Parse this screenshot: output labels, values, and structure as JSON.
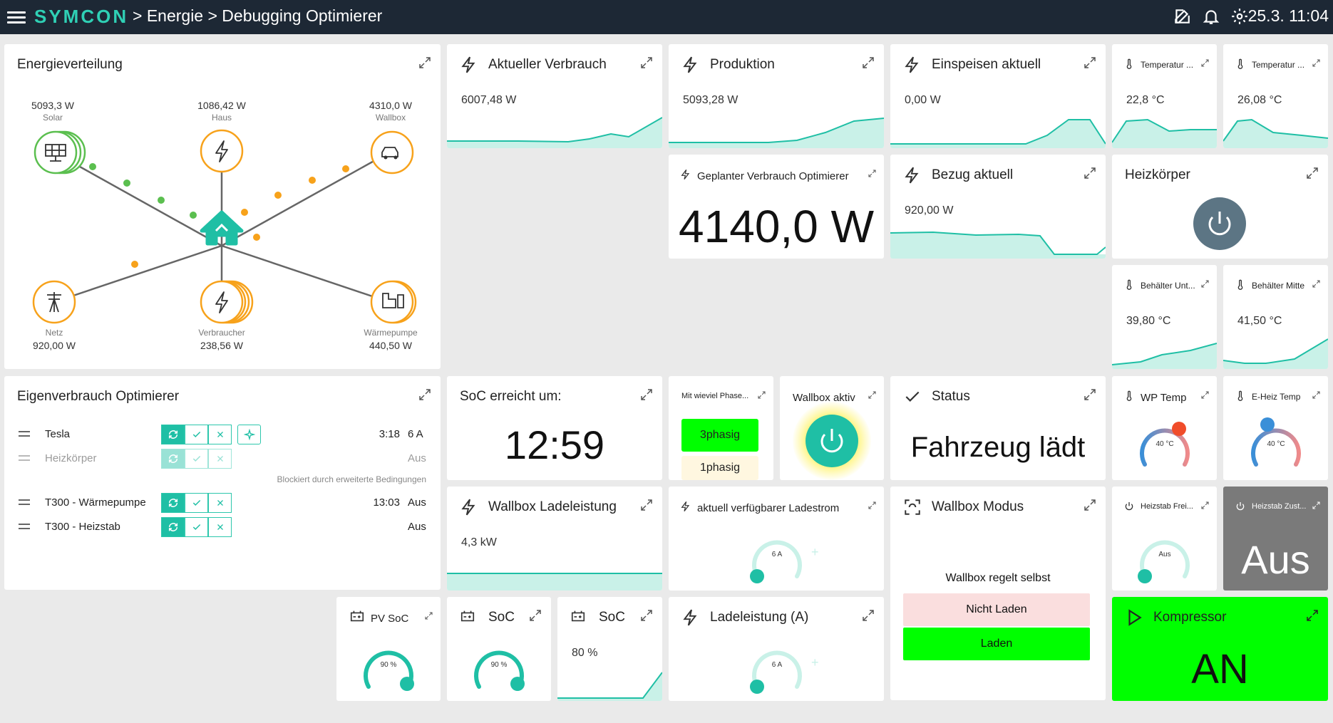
{
  "header": {
    "logo": "SYMCON",
    "breadcrumb": "> Energie > Debugging Optimierer",
    "datetime": "25.3. 11:04"
  },
  "colors": {
    "teal": "#1fbfa5",
    "orange": "#f7a21b",
    "green": "#5bbf4f",
    "bright_green": "#00ff00",
    "dark": "#1d2835"
  },
  "energy": {
    "title": "Energieverteilung",
    "solar": {
      "value": "5093,3 W",
      "label": "Solar"
    },
    "haus": {
      "value": "1086,42 W",
      "label": "Haus"
    },
    "wallbox": {
      "value": "4310,0 W",
      "label": "Wallbox"
    },
    "netz": {
      "value": "920,00 W",
      "label": "Netz"
    },
    "verbraucher": {
      "value": "238,56 W",
      "label": "Verbraucher"
    },
    "waermepumpe": {
      "value": "440,50 W",
      "label": "Wärmepumpe"
    }
  },
  "tiles": {
    "verbrauch": {
      "title": "Aktueller Verbrauch",
      "value": "6007,48 W"
    },
    "produktion": {
      "title": "Produktion",
      "value": "5093,28 W"
    },
    "einspeisen": {
      "title": "Einspeisen aktuell",
      "value": "0,00 W"
    },
    "temp1": {
      "title": "Temperatur ...",
      "value": "22,8 °C"
    },
    "temp2": {
      "title": "Temperatur ...",
      "value": "26,08 °C"
    },
    "geplant": {
      "title": "Geplanter Verbrauch Optimierer",
      "value": "4140,0 W"
    },
    "bezug": {
      "title": "Bezug aktuell",
      "value": "920,00 W"
    },
    "heizkoerper": {
      "title": "Heizkörper"
    },
    "behaelter_unten": {
      "title": "Behälter Unt...",
      "value": "39,80 °C"
    },
    "behaelter_mitte": {
      "title": "Behälter Mitte",
      "value": "41,50 °C"
    },
    "soc_time": {
      "title": "SoC erreicht um:",
      "value": "12:59"
    },
    "phasen": {
      "title": "Mit wieviel Phase...",
      "selected": "3phasig",
      "other": "1phasig"
    },
    "wallbox_aktiv": {
      "title": "Wallbox aktiv"
    },
    "status": {
      "title": "Status",
      "value": "Fahrzeug lädt"
    },
    "wp_temp": {
      "title": "WP Temp",
      "value": "40 °C"
    },
    "eheiz_temp": {
      "title": "E-Heiz Temp",
      "value": "40 °C"
    },
    "ladeleistung": {
      "title": "Wallbox Ladeleistung",
      "value": "4,3 kW"
    },
    "ladestrom": {
      "title": "aktuell verfügbarer Ladestrom",
      "value": "6 A",
      "plus": "+"
    },
    "wallbox_modus": {
      "title": "Wallbox Modus",
      "caption": "Wallbox regelt selbst",
      "opt1": "Nicht Laden",
      "opt2": "Laden"
    },
    "heizstab_frei": {
      "title": "Heizstab Frei...",
      "value": "Aus"
    },
    "heizstab_zust": {
      "title": "Heizstab Zust...",
      "value": "Aus"
    },
    "pv_soc": {
      "title": "PV SoC",
      "value": "90 %"
    },
    "soc1": {
      "title": "SoC",
      "value": "90 %"
    },
    "soc2": {
      "title": "SoC",
      "value": "80 %"
    },
    "ladeleistung_a": {
      "title": "Ladeleistung (A)",
      "value": "6 A",
      "plus": "+"
    },
    "kompressor": {
      "title": "Kompressor",
      "value": "AN"
    }
  },
  "optimizer": {
    "title": "Eigenverbrauch Optimierer",
    "rows": [
      {
        "name": "Tesla",
        "time": "3:18",
        "amp": "6 A"
      },
      {
        "name": "Heizkörper",
        "time": "",
        "amp": "Aus"
      },
      {
        "name": "T300 - Wärmepumpe",
        "time": "13:03",
        "amp": "Aus"
      },
      {
        "name": "T300 - Heizstab",
        "time": "",
        "amp": "Aus"
      }
    ],
    "blocked_note": "Blockiert durch erweiterte Bedingungen"
  }
}
